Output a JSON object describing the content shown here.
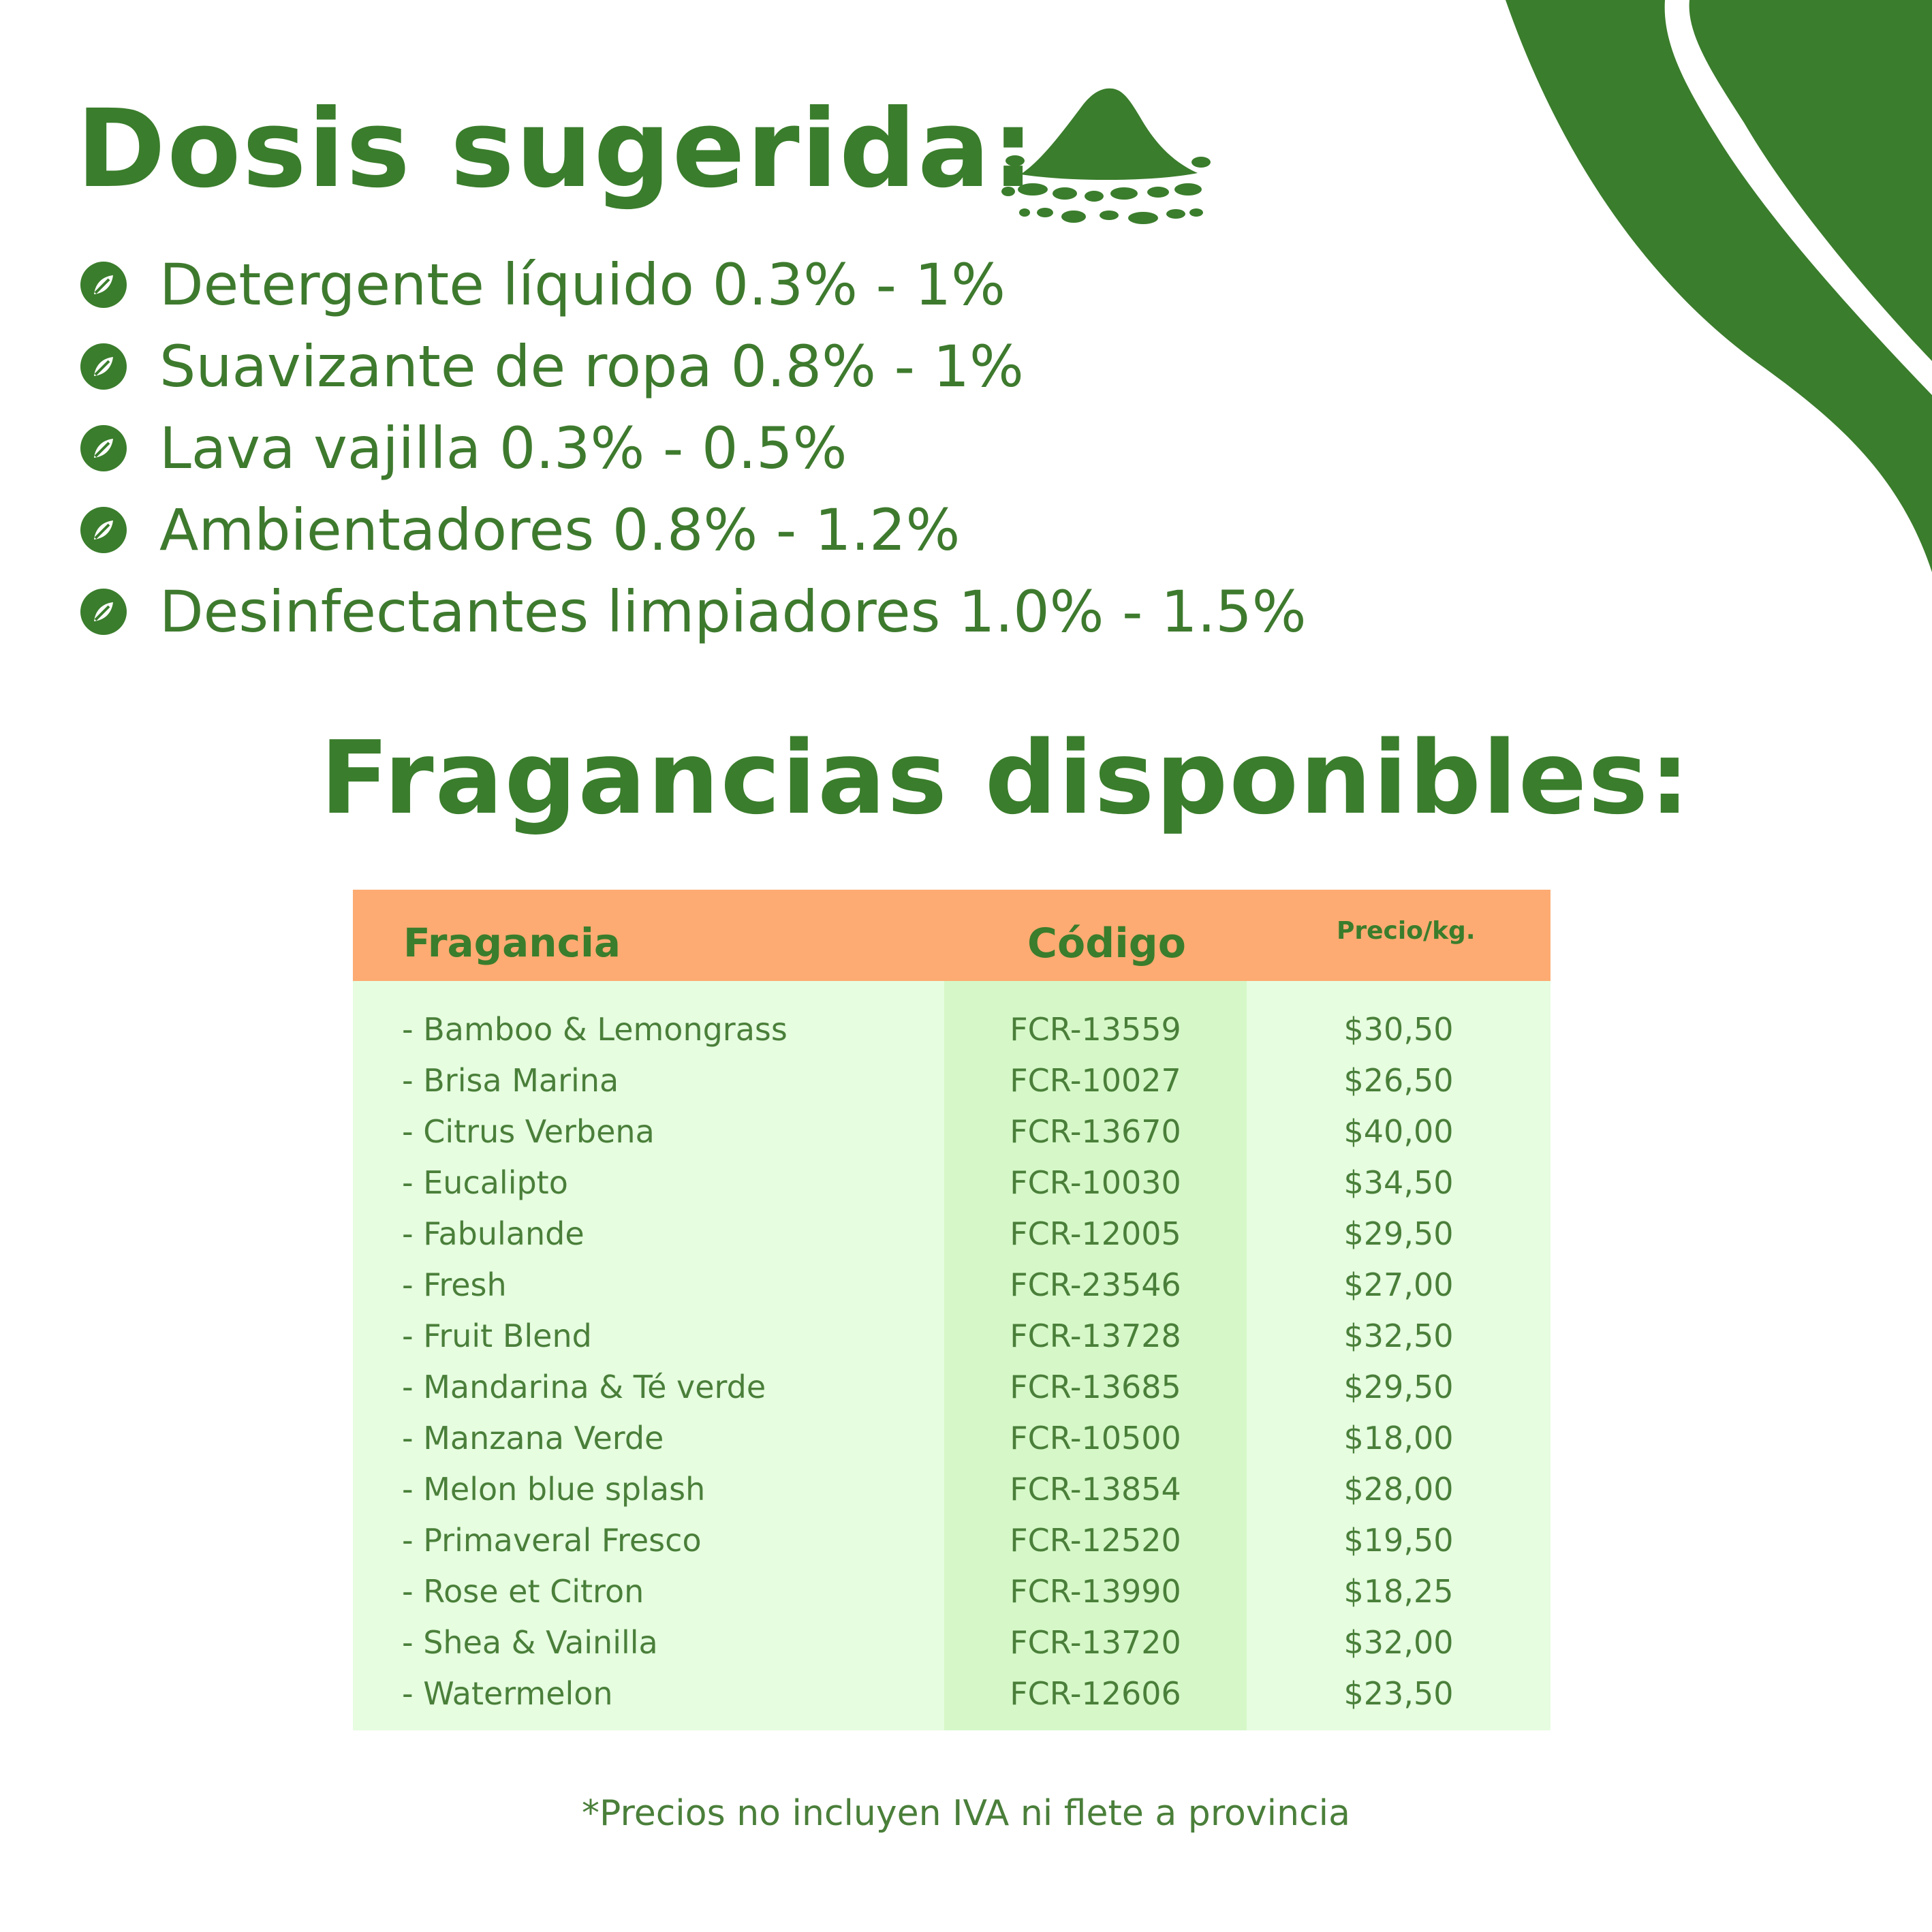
{
  "colors": {
    "primary_green": "#3a7d2c",
    "header_orange": "#fdab72",
    "table_light_green": "#e6fde0",
    "code_column_green": "#d6f8c8"
  },
  "dosis": {
    "title": "Dosis sugerida:",
    "title_icon": "powder-pile-icon",
    "bullet_icon": "leaf-icon",
    "items": [
      {
        "label": "Detergente líquido 0.3% - 1%"
      },
      {
        "label": "Suavizante de ropa  0.8% - 1%"
      },
      {
        "label": "Lava vajilla 0.3% - 0.5%"
      },
      {
        "label": "Ambientadores 0.8% - 1.2%"
      },
      {
        "label": "Desinfectantes limpiadores 1.0% - 1.5%"
      }
    ]
  },
  "fragancias": {
    "title": "Fragancias disponibles:",
    "table": {
      "headers": {
        "name": "Fragancia",
        "code": "Código",
        "price": "Precio/kg."
      },
      "rows": [
        {
          "name": "- Bamboo & Lemongrass",
          "code": "FCR-13559",
          "price": "$30,50"
        },
        {
          "name": "- Brisa Marina",
          "code": "FCR-10027",
          "price": "$26,50"
        },
        {
          "name": "- Citrus Verbena",
          "code": "FCR-13670",
          "price": "$40,00"
        },
        {
          "name": "- Eucalipto",
          "code": "FCR-10030",
          "price": "$34,50"
        },
        {
          "name": "- Fabulande",
          "code": "FCR-12005",
          "price": "$29,50"
        },
        {
          "name": "- Fresh",
          "code": "FCR-23546",
          "price": "$27,00"
        },
        {
          "name": "- Fruit Blend",
          "code": "FCR-13728",
          "price": "$32,50"
        },
        {
          "name": "- Mandarina & Té verde",
          "code": "FCR-13685",
          "price": "$29,50"
        },
        {
          "name": "- Manzana Verde",
          "code": "FCR-10500",
          "price": "$18,00"
        },
        {
          "name": "- Melon blue splash",
          "code": "FCR-13854",
          "price": "$28,00"
        },
        {
          "name": "- Primaveral Fresco",
          "code": "FCR-12520",
          "price": "$19,50"
        },
        {
          "name": "- Rose et Citron",
          "code": "FCR-13990",
          "price": "$18,25"
        },
        {
          "name": "- Shea & Vainilla",
          "code": "FCR-13720",
          "price": "$32,00"
        },
        {
          "name": "- Watermelon",
          "code": "FCR-12606",
          "price": "$23,50"
        }
      ]
    }
  },
  "footnote": "*Precios no incluyen IVA ni flete a provincia"
}
